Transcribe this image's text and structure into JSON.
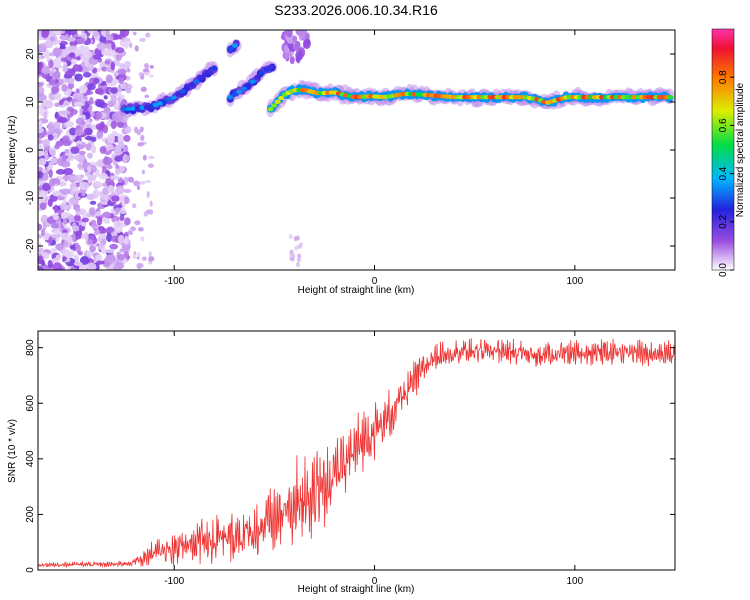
{
  "title": "S233.2026.006.10.34.R16",
  "colors": {
    "snr_line": "#ee3333",
    "ridge": "#e2262f",
    "speckle": "#7a2ad6",
    "speckle_light": "#c9b2ef",
    "axis": "#000000"
  },
  "chart_data": [
    {
      "type": "heatmap",
      "title": "S233.2026.006.10.34.R16",
      "xlabel": "Height of straight line (km)",
      "ylabel": "Frequency (Hz)",
      "xlim": [
        -168,
        150
      ],
      "ylim": [
        -25,
        25
      ],
      "x_ticks": [
        -100,
        0,
        100
      ],
      "x_tick_labels": [
        "-100",
        "0",
        "100"
      ],
      "y_ticks": [
        -20,
        -10,
        0,
        10,
        20
      ],
      "y_tick_labels": [
        "-20",
        "-10",
        "0",
        "10",
        "20"
      ],
      "colorbar": {
        "label": "Normalized spectral amplitude",
        "range": [
          0,
          1
        ],
        "ticks": [
          0,
          0.2,
          0.4,
          0.6,
          0.8
        ],
        "tick_labels": [
          "0.0",
          "0.2",
          "0.4",
          "0.6",
          "0.8"
        ],
        "colormap": "rainbow (white → purple → blue → cyan → green → yellow → red → magenta)"
      },
      "signal_track": {
        "segments": [
          {
            "points": [
              {
                "x": -125,
                "y": 8.5
              },
              {
                "x": -118,
                "y": 8.7
              },
              {
                "x": -112,
                "y": 9.0
              },
              {
                "x": -105,
                "y": 10.0
              },
              {
                "x": -100,
                "y": 11.0
              },
              {
                "x": -95,
                "y": 12.5
              },
              {
                "x": -90,
                "y": 14.0
              },
              {
                "x": -85,
                "y": 15.5
              },
              {
                "x": -80,
                "y": 17.0
              }
            ],
            "amplitude": 0.35
          },
          {
            "points": [
              {
                "x": -72,
                "y": 21.0
              },
              {
                "x": -69,
                "y": 22.0
              }
            ],
            "amplitude": 0.4
          },
          {
            "points": [
              {
                "x": -72,
                "y": 11.0
              },
              {
                "x": -66,
                "y": 12.5
              },
              {
                "x": -60,
                "y": 14.5
              },
              {
                "x": -55,
                "y": 16.5
              },
              {
                "x": -51,
                "y": 17.5
              }
            ],
            "amplitude": 0.35
          },
          {
            "points": [
              {
                "x": -52,
                "y": 8.5
              },
              {
                "x": -45,
                "y": 11.5
              },
              {
                "x": -40,
                "y": 12.5
              },
              {
                "x": -35,
                "y": 12.5
              },
              {
                "x": -28,
                "y": 11.8
              },
              {
                "x": -20,
                "y": 12.0
              },
              {
                "x": -10,
                "y": 11.0
              },
              {
                "x": -2,
                "y": 11.2
              },
              {
                "x": 5,
                "y": 11.0
              },
              {
                "x": 15,
                "y": 11.7
              },
              {
                "x": 25,
                "y": 11.5
              },
              {
                "x": 40,
                "y": 11.0
              },
              {
                "x": 60,
                "y": 11.0
              },
              {
                "x": 75,
                "y": 11.0
              },
              {
                "x": 82,
                "y": 10.5
              },
              {
                "x": 86,
                "y": 9.8
              },
              {
                "x": 90,
                "y": 10.3
              },
              {
                "x": 96,
                "y": 11.0
              },
              {
                "x": 110,
                "y": 11.0
              },
              {
                "x": 130,
                "y": 11.0
              },
              {
                "x": 148,
                "y": 11.0
              }
            ],
            "amplitude": 0.85
          }
        ]
      }
    },
    {
      "type": "line",
      "xlabel": "Height of straight line (km)",
      "ylabel": "SNR (10 * v/v)",
      "xlim": [
        -168,
        150
      ],
      "ylim": [
        0,
        860
      ],
      "x_ticks": [
        -100,
        0,
        100
      ],
      "x_tick_labels": [
        "-100",
        "0",
        "100"
      ],
      "y_ticks": [
        0,
        200,
        400,
        600,
        800
      ],
      "y_tick_labels": [
        "0",
        "200",
        "400",
        "600",
        "800"
      ],
      "series": [
        {
          "x": [
            -168,
            -150,
            -130,
            -122,
            -118,
            -112,
            -105,
            -98,
            -90,
            -82,
            -75,
            -70,
            -62,
            -55,
            -48,
            -42,
            -35,
            -28,
            -22,
            -15,
            -10,
            -5,
            0,
            5,
            10,
            15,
            20,
            25,
            30,
            40,
            60,
            80,
            100,
            120,
            150
          ],
          "y": [
            18,
            20,
            20,
            25,
            35,
            55,
            70,
            80,
            100,
            95,
            105,
            120,
            130,
            160,
            190,
            220,
            240,
            260,
            320,
            380,
            430,
            470,
            500,
            530,
            580,
            630,
            680,
            730,
            770,
            785,
            790,
            780,
            780,
            785,
            780
          ],
          "noise": [
            8,
            10,
            10,
            12,
            22,
            40,
            55,
            60,
            70,
            80,
            85,
            90,
            100,
            110,
            120,
            130,
            140,
            140,
            135,
            130,
            120,
            110,
            100,
            95,
            90,
            80,
            70,
            60,
            50,
            45,
            45,
            45,
            45,
            45,
            45
          ]
        }
      ]
    }
  ]
}
